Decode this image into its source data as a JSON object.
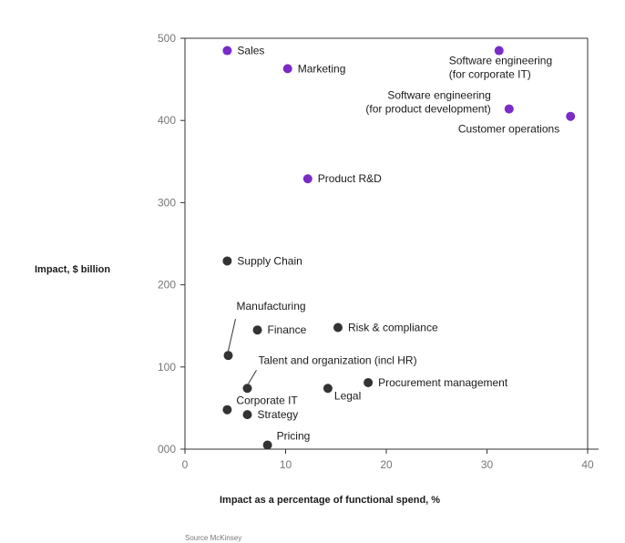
{
  "chart_data": {
    "type": "scatter",
    "title": "",
    "xlabel": "Impact as a percentage of functional spend, %",
    "ylabel": "Impact, $ billion",
    "xlim": [
      0,
      40
    ],
    "ylim": [
      0,
      500
    ],
    "xticks": [
      "0",
      "10",
      "20",
      "30",
      "40"
    ],
    "yticks": [
      "000",
      "100",
      "200",
      "300",
      "400",
      "500"
    ],
    "colors": {
      "highlight": "#7a2bc8",
      "default": "#333333",
      "axis": "#333333"
    },
    "points": [
      {
        "name": "Sales",
        "lines": [
          "Sales"
        ],
        "x": 4.2,
        "y": 485,
        "group": "highlight",
        "anchor": "right"
      },
      {
        "name": "Marketing",
        "lines": [
          "Marketing"
        ],
        "x": 10.2,
        "y": 463,
        "group": "highlight",
        "anchor": "right"
      },
      {
        "name": "Software engineering (for corporate IT)",
        "lines": [
          "Software engineering",
          "(for corporate IT)"
        ],
        "x": 31.2,
        "y": 485,
        "group": "highlight",
        "anchor": "below"
      },
      {
        "name": "Software engineering (for product development)",
        "lines": [
          "Software engineering",
          "(for product development)"
        ],
        "x": 32.2,
        "y": 414,
        "group": "highlight",
        "anchor": "above-left"
      },
      {
        "name": "Customer operations",
        "lines": [
          "Customer operations"
        ],
        "x": 38.3,
        "y": 405,
        "group": "highlight",
        "anchor": "below-left"
      },
      {
        "name": "Product R&D",
        "lines": [
          "Product R&D"
        ],
        "x": 12.2,
        "y": 329,
        "group": "highlight",
        "anchor": "right"
      },
      {
        "name": "Supply Chain",
        "lines": [
          "Supply Chain"
        ],
        "x": 4.2,
        "y": 229,
        "group": "default",
        "anchor": "right"
      },
      {
        "name": "Manufacturing",
        "lines": [
          "Manufacturing"
        ],
        "x": 4.3,
        "y": 114,
        "group": "default",
        "anchor": "leader-up"
      },
      {
        "name": "Finance",
        "lines": [
          "Finance"
        ],
        "x": 7.2,
        "y": 145,
        "group": "default",
        "anchor": "right"
      },
      {
        "name": "Risk & compliance",
        "lines": [
          "Risk & compliance"
        ],
        "x": 15.2,
        "y": 148,
        "group": "default",
        "anchor": "right"
      },
      {
        "name": "Talent and organization (incl HR)",
        "lines": [
          "Talent and organization (incl HR)"
        ],
        "x": 6.2,
        "y": 74,
        "group": "default",
        "anchor": "leader-upright"
      },
      {
        "name": "Procurement management",
        "lines": [
          "Procurement management"
        ],
        "x": 18.2,
        "y": 81,
        "group": "default",
        "anchor": "right"
      },
      {
        "name": "Legal",
        "lines": [
          "Legal"
        ],
        "x": 14.2,
        "y": 74,
        "group": "default",
        "anchor": "below-right"
      },
      {
        "name": "Corporate IT",
        "lines": [
          "Corporate IT"
        ],
        "x": 4.2,
        "y": 48,
        "group": "default",
        "anchor": "above-right"
      },
      {
        "name": "Strategy",
        "lines": [
          "Strategy"
        ],
        "x": 6.2,
        "y": 42,
        "group": "default",
        "anchor": "right"
      },
      {
        "name": "Pricing",
        "lines": [
          "Pricing"
        ],
        "x": 8.2,
        "y": 5,
        "group": "default",
        "anchor": "above-right"
      }
    ]
  },
  "source": "Source McKinsey"
}
